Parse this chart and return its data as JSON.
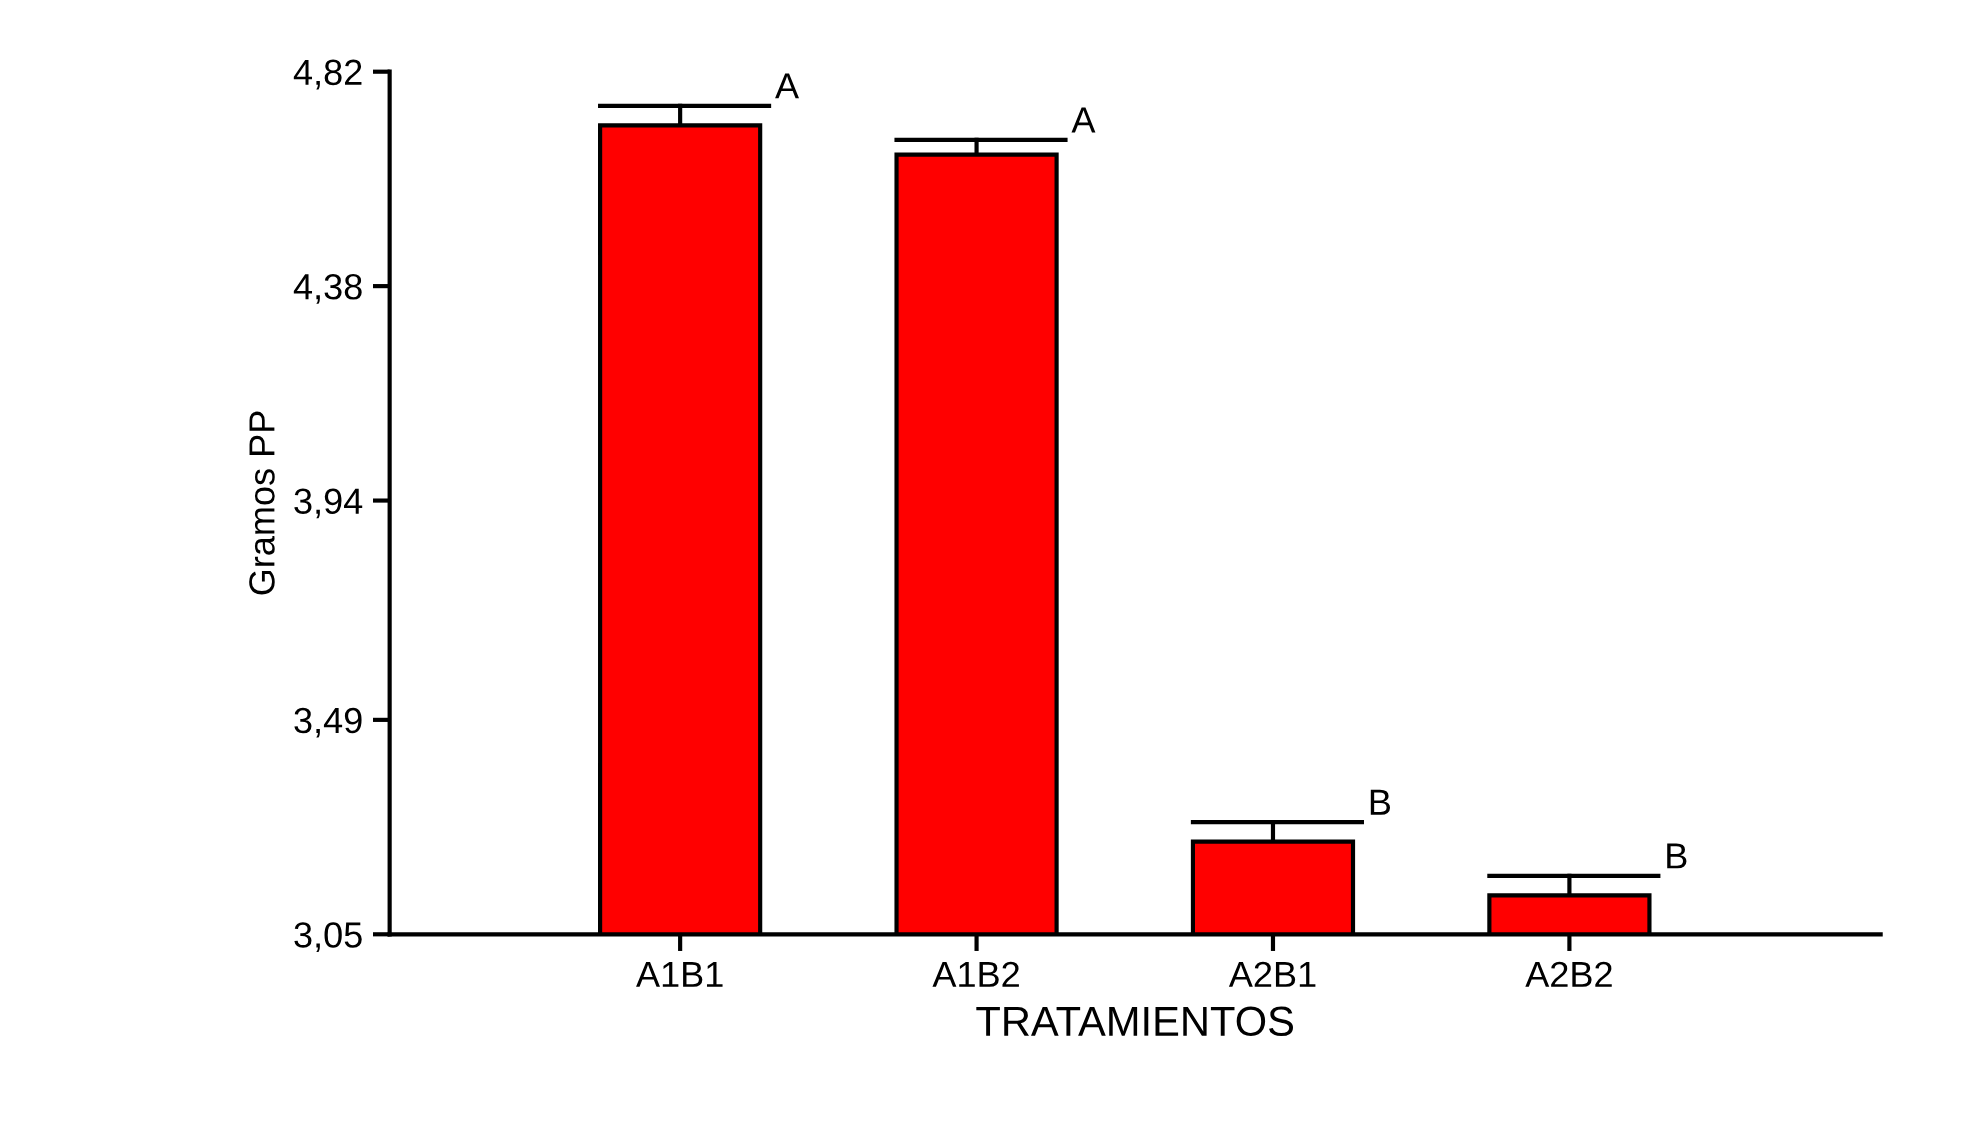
{
  "chart_data": {
    "type": "bar",
    "xlabel": "TRATAMIENTOS",
    "ylabel": "Gramos PP",
    "categories": [
      "A1B1",
      "A1B2",
      "A2B1",
      "A2B2"
    ],
    "values": [
      4.71,
      4.65,
      3.24,
      3.13
    ],
    "errors": [
      [
        4.71,
        4.75
      ],
      [
        4.65,
        4.68
      ],
      [
        3.24,
        3.28
      ],
      [
        3.13,
        3.17
      ]
    ],
    "color": "#ff0000",
    "ylim": [
      3.05,
      4.82
    ],
    "yticks": [
      {
        "value": 3.05,
        "label": "3,05"
      },
      {
        "value": 3.49,
        "label": "3,49"
      },
      {
        "value": 3.94,
        "label": "3,94"
      },
      {
        "value": 4.38,
        "label": "4,38"
      },
      {
        "value": 4.82,
        "label": "4,82"
      }
    ],
    "grid": false,
    "annotations": [
      {
        "text": "A",
        "x": "A1B1",
        "y": 4.75
      },
      {
        "text": "A",
        "x": "A1B2",
        "y": 4.68
      },
      {
        "text": "B",
        "x": "A2B1",
        "y": 3.28
      },
      {
        "text": "B",
        "x": "A2B2",
        "y": 3.17
      }
    ]
  }
}
